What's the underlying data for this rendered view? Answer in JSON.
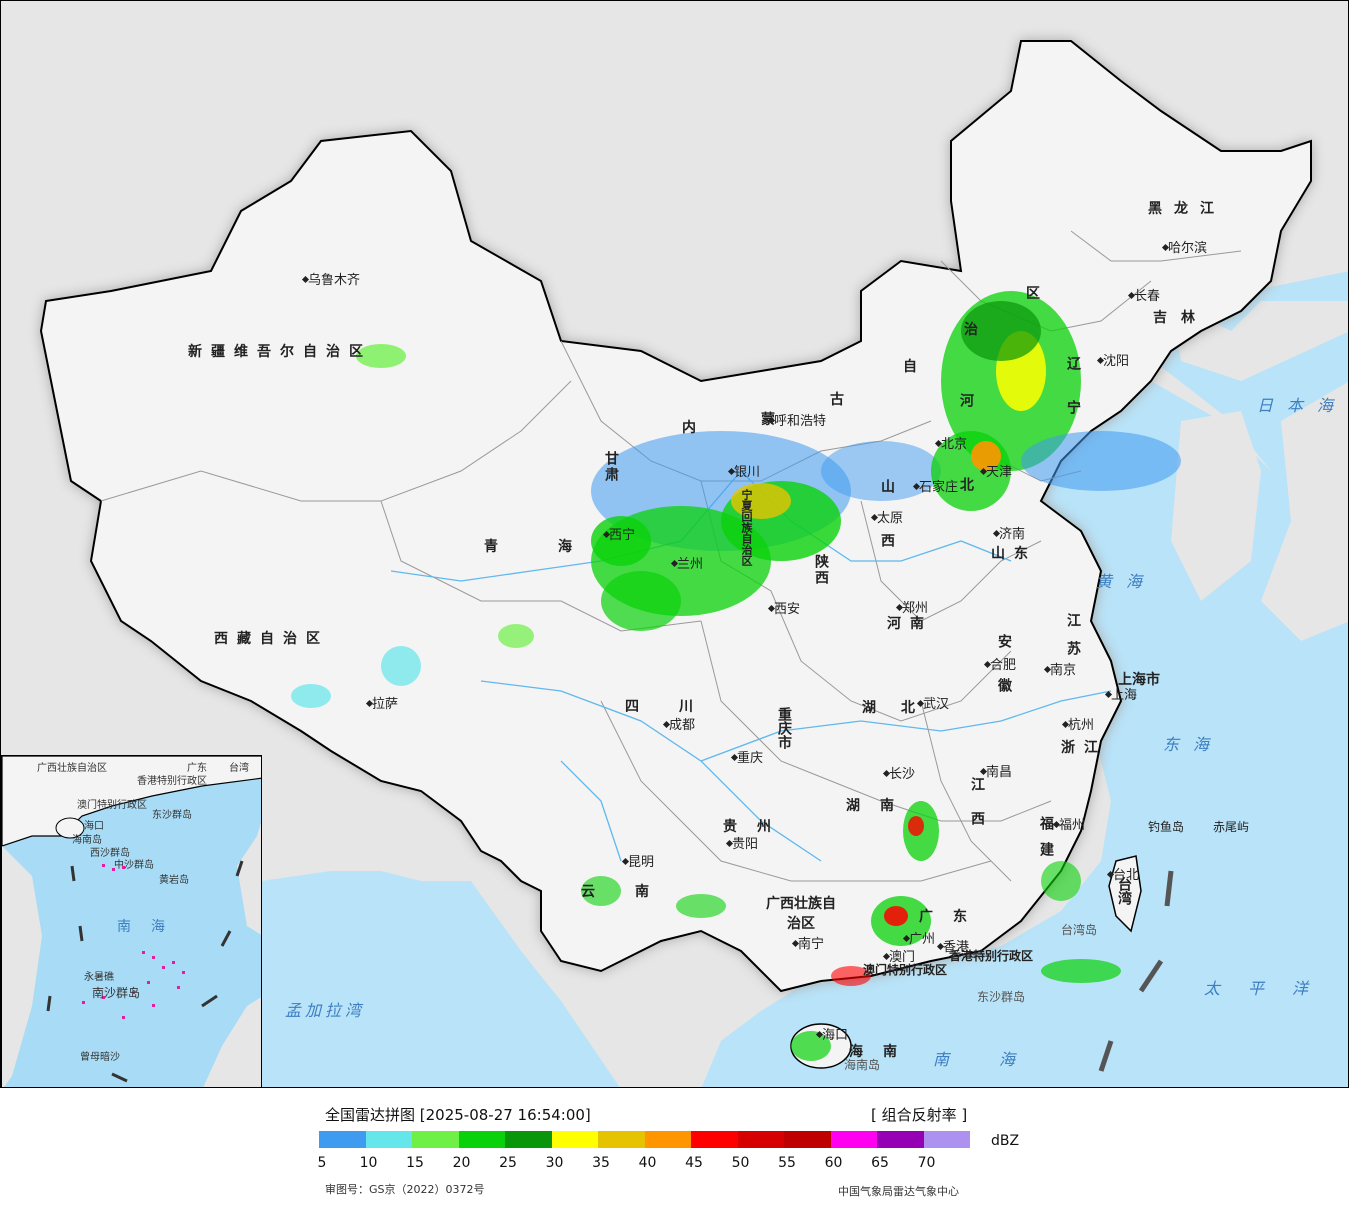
{
  "map": {
    "cities": {
      "urumqi": "乌鲁木齐",
      "lhasa": "拉萨",
      "xining": "西宁",
      "lanzhou": "兰州",
      "yinchuan": "银川",
      "hohhot": "呼和浩特",
      "beijing": "北京",
      "tianjin": "天津",
      "shijiazhuang": "石家庄",
      "taiyuan": "太原",
      "jinan": "济南",
      "zhengzhou": "郑州",
      "xian": "西安",
      "chengdu": "成都",
      "chongqing": "重庆",
      "wuhan": "武汉",
      "hefei": "合肥",
      "nanjing": "南京",
      "shanghai": "上海",
      "hangzhou": "杭州",
      "nanchang": "南昌",
      "changsha": "长沙",
      "guiyang": "贵阳",
      "kunming": "昆明",
      "nanning": "南宁",
      "guangzhou": "广州",
      "hongkong": "香港",
      "macau": "澳门",
      "haikou": "海口",
      "fuzhou": "福州",
      "taibei": "台北",
      "shenyang": "沈阳",
      "changchun": "长春",
      "harbin": "哈尔滨"
    },
    "provinces": {
      "xinjiang": "新疆维吾尔自治区",
      "xizang": "西藏自治区",
      "qinghai": "青海",
      "gansu": "甘肃",
      "neimenggu_1": "内",
      "neimenggu_2": "蒙",
      "neimenggu_3": "古",
      "neimenggu_4": "自",
      "neimenggu_5": "治",
      "neimenggu_6": "区",
      "ningxia": "宁夏回族自治区",
      "shaanxi": "陕西",
      "shanxi": "山西",
      "hebei": "河北",
      "shandong": "山东",
      "henan": "河南",
      "sichuan": "四川",
      "chongqing": "重庆市",
      "hubei": "湖北",
      "anhui": "安徽",
      "jiangsu": "江苏",
      "shanghai": "上海市",
      "zhejiang": "浙江",
      "jiangxi": "江西",
      "hunan": "湖南",
      "guizhou": "贵州",
      "yunnan": "云南",
      "guangxi": "广西壮族自治区",
      "guangdong": "广东",
      "hainan": "海南",
      "fujian": "福建",
      "taiwan": "台湾",
      "liaoning": "辽宁",
      "jilin": "吉林",
      "heilongjiang": "黑龙江",
      "hk_sar": "香港特别行政区",
      "macau_sar": "澳门特别行政区"
    },
    "seas": {
      "japan": "日本海",
      "yellow": "黄海",
      "east": "东海",
      "south": "南海",
      "pacific": "太平洋",
      "bengal": "孟加拉湾"
    },
    "islands": {
      "diaoyu": "钓鱼岛",
      "chiwei": "赤尾屿",
      "dongsha": "东沙群岛",
      "hainan": "海南岛",
      "taiwan": "台湾岛"
    },
    "inset": {
      "guangxi": "广西壮族自治区",
      "guangdong": "广东",
      "taiwan": "台湾",
      "hk": "香港特别行政区",
      "macau": "澳门特别行政区",
      "haikou": "海口",
      "hainan": "海南岛",
      "dongsha": "东沙群岛",
      "xisha": "西沙群岛",
      "zhongsha": "中沙群岛",
      "huangyan": "黄岩岛",
      "south_sea": "南海",
      "yongshu": "永暑礁",
      "nansha": "南沙群岛",
      "zengmu": "曾母暗沙"
    }
  },
  "legend": {
    "title": "全国雷达拼图 [2025-08-27 16:54:00]",
    "product": "[ 组合反射率 ]",
    "unit": "dBZ",
    "ticks": [
      "5",
      "10",
      "15",
      "20",
      "25",
      "30",
      "35",
      "40",
      "45",
      "50",
      "55",
      "60",
      "65",
      "70"
    ],
    "colors": [
      "#3f9bf0",
      "#64e6ea",
      "#6ef046",
      "#0ad20a",
      "#0a960a",
      "#ffff00",
      "#e6c300",
      "#ff9600",
      "#ff0000",
      "#d70000",
      "#be0000",
      "#ff00f0",
      "#9600b4",
      "#ad91f0"
    ],
    "review_number": "审图号：GS京（2022）0372号",
    "source": "中国气象局雷达气象中心"
  }
}
